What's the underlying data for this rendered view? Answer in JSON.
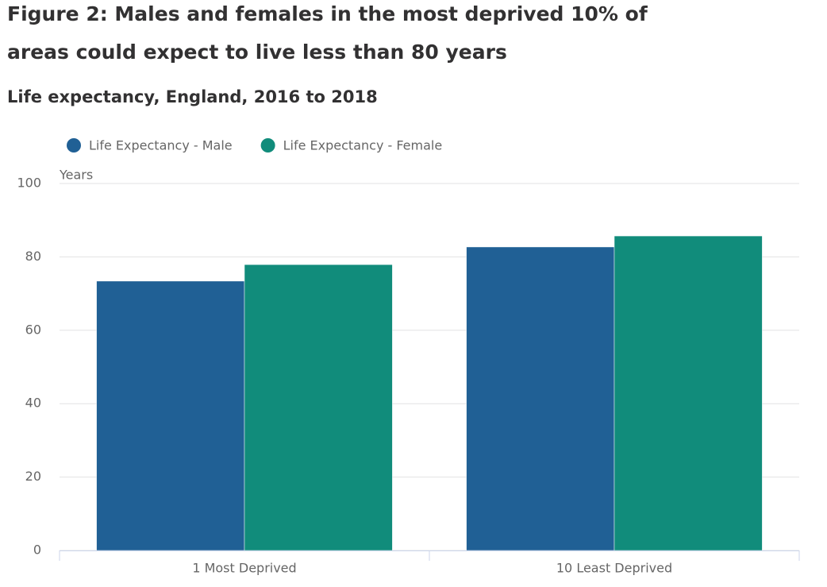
{
  "chart_data": {
    "type": "bar",
    "title": "Figure 2: Males and females in the most deprived 10% of areas could expect to live less than 80 years",
    "subtitle": "Life expectancy, England, 2016 to 2018",
    "y_label": "Years",
    "categories": [
      "1 Most Deprived",
      "10 Least Deprived"
    ],
    "series": [
      {
        "name": "Life Expectancy - Male",
        "color": "#206095",
        "values": [
          73.4,
          82.7
        ]
      },
      {
        "name": "Life Expectancy - Female",
        "color": "#118c7b",
        "values": [
          77.9,
          85.7
        ]
      }
    ],
    "ylim": [
      0,
      100
    ],
    "yticks": [
      0,
      20,
      40,
      60,
      80,
      100
    ],
    "grid": true,
    "legend": "top"
  }
}
